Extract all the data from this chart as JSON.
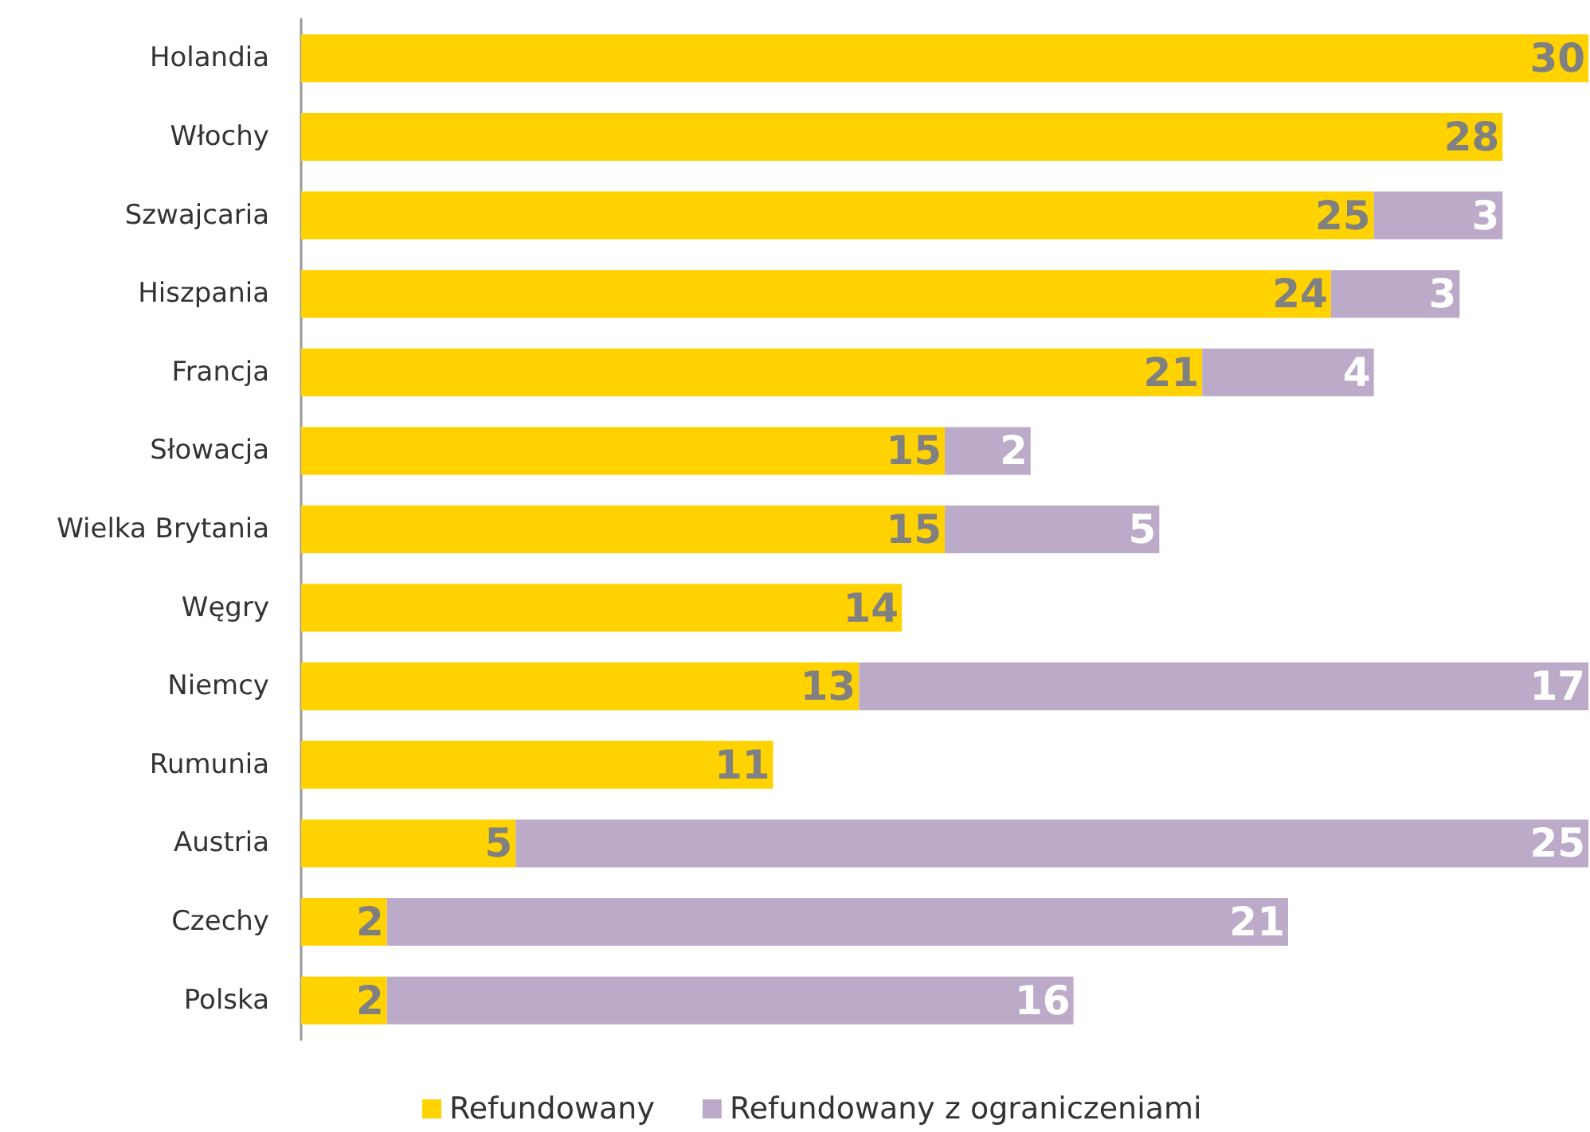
{
  "chart_data": {
    "type": "bar",
    "orientation": "horizontal",
    "stacked": true,
    "data_labels": true,
    "legend": "bottom",
    "categories": [
      "Holandia",
      "Włochy",
      "Szwajcaria",
      "Hiszpania",
      "Francja",
      "Słowacja",
      "Wielka Brytania",
      "Węgry",
      "Niemcy",
      "Rumunia",
      "Austria",
      "Czechy",
      "Polska"
    ],
    "series": [
      {
        "name": "Refundowany",
        "color": "#ffd200",
        "values": [
          30,
          28,
          25,
          24,
          21,
          15,
          15,
          14,
          13,
          11,
          5,
          2,
          2
        ]
      },
      {
        "name": "Refundowany z ograniczeniami",
        "color": "#bcaac9",
        "values": [
          null,
          null,
          3,
          3,
          4,
          2,
          5,
          null,
          17,
          null,
          25,
          21,
          16
        ]
      }
    ]
  }
}
